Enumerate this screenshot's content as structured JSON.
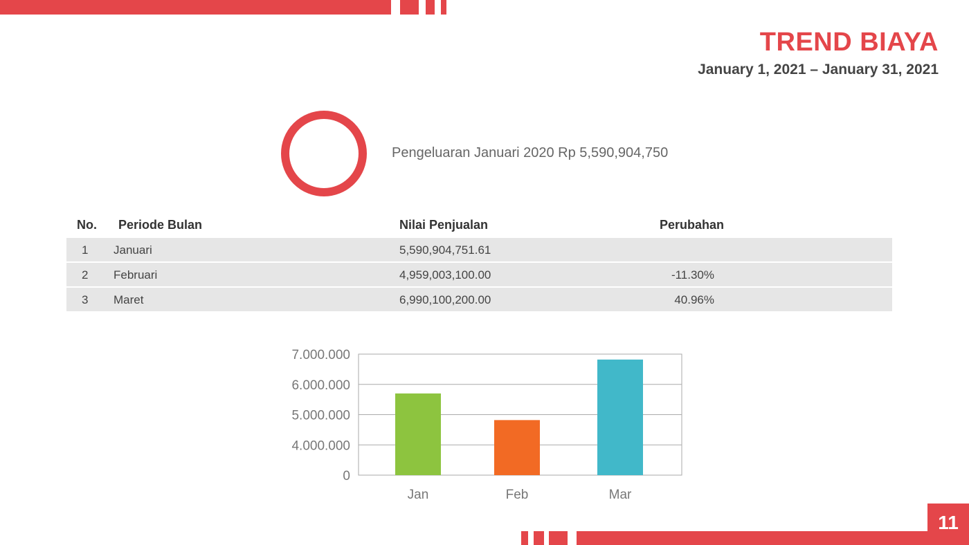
{
  "header": {
    "title": "TREND BIAYA",
    "date_range": "January 1, 2021 – January 31, 2021"
  },
  "summary": {
    "text": "Pengeluaran Januari 2020 Rp 5,590,904,750"
  },
  "table": {
    "headers": [
      "No.",
      "Periode Bulan",
      "Nilai Penjualan",
      "Perubahan"
    ],
    "rows": [
      [
        "1",
        "Januari",
        "5,590,904,751.61",
        ""
      ],
      [
        "2",
        "Februari",
        "4,959,003,100.00",
        "-11.30%"
      ],
      [
        "3",
        "Maret",
        "6,990,100,200.00",
        "40.96%"
      ]
    ]
  },
  "chart_data": {
    "type": "bar",
    "categories": [
      "Jan",
      "Feb",
      "Mar"
    ],
    "values": [
      5700000,
      4820000,
      6820000
    ],
    "colors": [
      "#8dc43f",
      "#f26a24",
      "#41b8c9"
    ],
    "yticks": [
      "0",
      "4.000.000",
      "5.000.000",
      "6.000.000",
      "7.000.000"
    ],
    "ytick_values": [
      0,
      4000000,
      5000000,
      6000000,
      7000000
    ],
    "grid": true
  },
  "page_number": "11"
}
